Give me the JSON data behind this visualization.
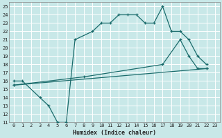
{
  "xlabel": "Humidex (Indice chaleur)",
  "bg_color": "#c8e8e8",
  "grid_color": "#aad4d4",
  "line_color": "#1a6b6b",
  "xlim": [
    -0.5,
    23.5
  ],
  "ylim": [
    11,
    25.5
  ],
  "xticks": [
    0,
    1,
    2,
    3,
    4,
    5,
    6,
    7,
    8,
    9,
    10,
    11,
    12,
    13,
    14,
    15,
    16,
    17,
    18,
    19,
    20,
    21,
    22,
    23
  ],
  "yticks": [
    11,
    12,
    13,
    14,
    15,
    16,
    17,
    18,
    19,
    20,
    21,
    22,
    23,
    24,
    25
  ],
  "series1_x": [
    0,
    1,
    3,
    4,
    5,
    6,
    7,
    9,
    10,
    11,
    12,
    13,
    14,
    15,
    16,
    17,
    18,
    19,
    20,
    21,
    22
  ],
  "series1_y": [
    16,
    16,
    14,
    13,
    11,
    11,
    21,
    22,
    23,
    23,
    24,
    24,
    24,
    23,
    23,
    25,
    22,
    22,
    21,
    19,
    18
  ],
  "series2_x": [
    0,
    22
  ],
  "series2_y": [
    15.5,
    17.5
  ],
  "series3_x": [
    0,
    8,
    17,
    19,
    20,
    21,
    22
  ],
  "series3_y": [
    15.5,
    16.5,
    18.0,
    21.0,
    19.0,
    17.5,
    17.5
  ],
  "xlabel_fontsize": 6,
  "tick_fontsize": 5
}
